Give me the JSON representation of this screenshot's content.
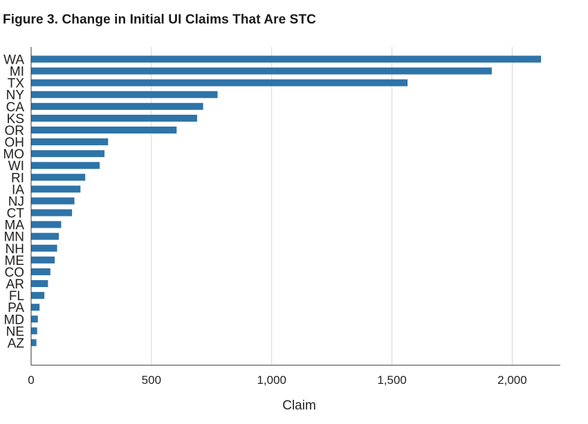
{
  "figure_title": "Figure 3.  Change in Initial UI Claims That Are STC",
  "colors": {
    "bar": "#2e74a8",
    "grid": "#d4d4d4",
    "axis": "#333333",
    "text": "#222222"
  },
  "chart_data": {
    "type": "bar",
    "orientation": "horizontal",
    "title": "Figure 3.  Change in Initial UI Claims That Are STC",
    "xlabel": "Claim",
    "ylabel": "",
    "xlim": [
      0,
      2200
    ],
    "x_ticks": [
      0,
      500,
      1000,
      1500,
      2000
    ],
    "x_tick_labels": [
      "0",
      "500",
      "1,000",
      "1,500",
      "2,000"
    ],
    "grid": "vertical",
    "legend": "none",
    "categories": [
      "WA",
      "MI",
      "TX",
      "NY",
      "CA",
      "KS",
      "OR",
      "OH",
      "MO",
      "WI",
      "RI",
      "IA",
      "NJ",
      "CT",
      "MA",
      "MN",
      "NH",
      "ME",
      "CO",
      "AR",
      "FL",
      "PA",
      "MD",
      "NE",
      "AZ"
    ],
    "values": [
      2120,
      1915,
      1565,
      775,
      715,
      690,
      605,
      320,
      305,
      285,
      225,
      205,
      180,
      170,
      125,
      115,
      108,
      98,
      80,
      70,
      55,
      35,
      28,
      25,
      22
    ]
  }
}
